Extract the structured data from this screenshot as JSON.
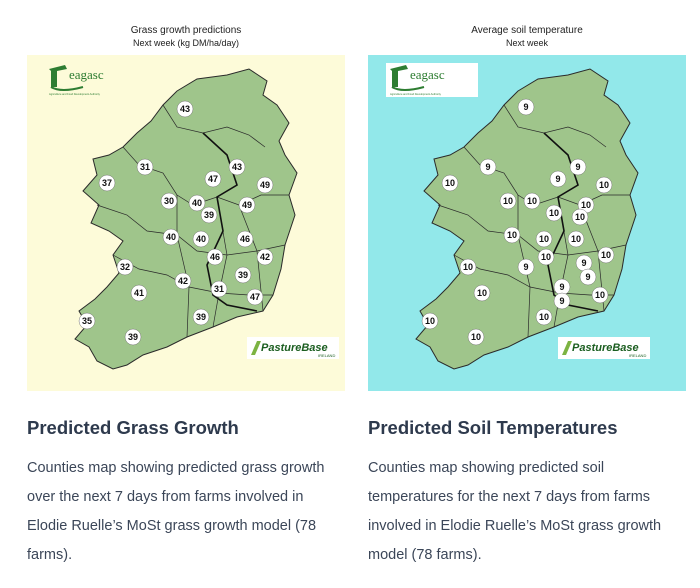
{
  "cards": [
    {
      "map_title": "Grass growth predictions",
      "map_subtitle": "Next week (kg DM/ha/day)",
      "background": "#fdfbd9",
      "logo_text": "eagasc",
      "logo_tagline": "Agriculture and Food Development Authority",
      "brand_text": "PastureBase",
      "brand_sub": "IRELAND",
      "values": [
        "43",
        "31",
        "47",
        "43",
        "49",
        "37",
        "30",
        "40",
        "49",
        "39",
        "40",
        "46",
        "40",
        "46",
        "42",
        "39",
        "31",
        "47",
        "32",
        "41",
        "42",
        "39",
        "35",
        "39"
      ],
      "heading": "Predicted Grass Growth",
      "description": "Counties map showing predicted grass growth over the next 7 days from farms involved in Elodie Ruelle’s MoSt grass growth model (78 farms)."
    },
    {
      "map_title": "Average soil temperature",
      "map_subtitle": "Next week",
      "background": "#92e8ea",
      "logo_text": "eagasc",
      "logo_tagline": "Agriculture and Food Development Authority",
      "brand_text": "PastureBase",
      "brand_sub": "IRELAND",
      "values": [
        "9",
        "9",
        "9",
        "9",
        "10",
        "10",
        "10",
        "10",
        "10",
        "10",
        "10",
        "10",
        "10",
        "10",
        "10",
        "9",
        "10",
        "9",
        "9",
        "9",
        "10",
        "9",
        "10",
        "10",
        "10",
        "10",
        "10"
      ],
      "heading": "Predicted Soil Temperatures",
      "description": "Counties map showing predicted soil temperatures for the next 7 days from farms involved in Elodie Ruelle’s MoSt grass growth model (78 farms)."
    }
  ],
  "colors": {
    "land": "#9fc58b",
    "border": "#2a2a2a",
    "teagasc_green": "#2e7d32",
    "title": "#2e3a4d"
  }
}
